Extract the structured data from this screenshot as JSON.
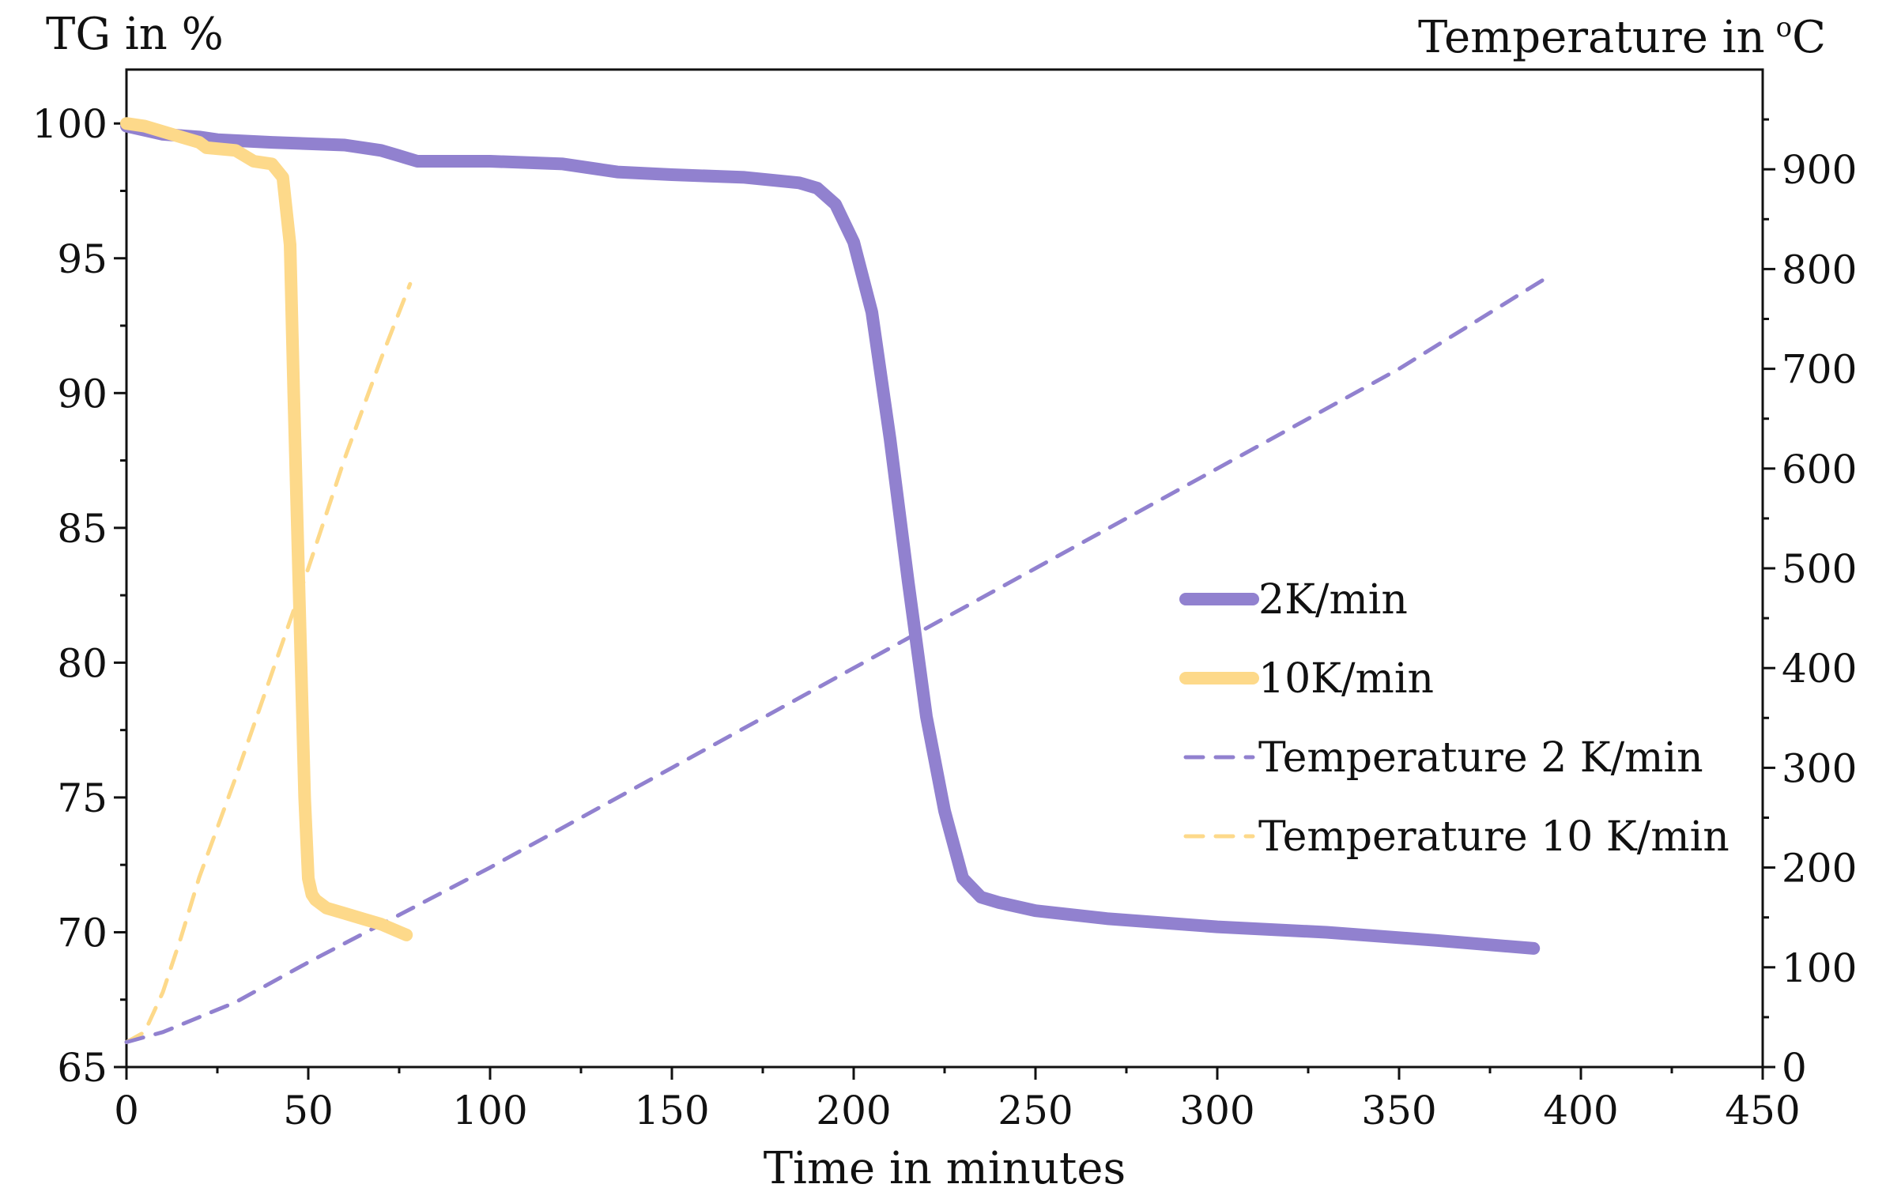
{
  "chart_data": {
    "type": "line",
    "title": "",
    "xlabel": "Time in minutes",
    "ylabel_left": "TG in %",
    "ylabel_right": "Temperature in °C",
    "right_label_text": "Temperature in",
    "right_label_unit_sup": "o",
    "right_label_unit": "C",
    "xlim": [
      0,
      450
    ],
    "ylim_left": [
      65,
      102
    ],
    "ylim_right": [
      0,
      1000
    ],
    "x_ticks": [
      0,
      50,
      100,
      150,
      200,
      250,
      300,
      350,
      400,
      450
    ],
    "y_left_ticks": [
      65,
      70,
      75,
      80,
      85,
      90,
      95,
      100
    ],
    "y_right_ticks": [
      0,
      100,
      200,
      300,
      400,
      500,
      600,
      700,
      800,
      900
    ],
    "legend_position": "center-right",
    "colors": {
      "purple": "#9181cf",
      "yellow": "#fdd98a",
      "axis": "#111111"
    },
    "series": [
      {
        "name": "2K/min",
        "axis": "left",
        "style": "solid",
        "color": "#9181cf",
        "x": [
          0,
          10,
          20,
          25,
          40,
          60,
          70,
          75,
          80,
          100,
          120,
          130,
          135,
          150,
          170,
          185,
          190,
          195,
          200,
          205,
          210,
          215,
          220,
          225,
          230,
          235,
          240,
          250,
          270,
          300,
          330,
          360,
          387
        ],
        "y": [
          99.9,
          99.6,
          99.5,
          99.4,
          99.3,
          99.2,
          99.0,
          98.8,
          98.6,
          98.6,
          98.5,
          98.3,
          98.2,
          98.1,
          98.0,
          97.8,
          97.6,
          97.0,
          95.6,
          93.0,
          88.3,
          83.0,
          78.0,
          74.5,
          72.0,
          71.3,
          71.1,
          70.8,
          70.5,
          70.2,
          70.0,
          69.7,
          69.4
        ]
      },
      {
        "name": "10K/min",
        "axis": "left",
        "style": "solid",
        "color": "#fdd98a",
        "x": [
          0,
          5,
          10,
          15,
          20,
          22,
          30,
          35,
          40,
          43,
          45,
          46,
          47,
          48,
          49,
          50,
          51,
          52,
          55,
          60,
          65,
          70,
          77
        ],
        "y": [
          100.0,
          99.9,
          99.7,
          99.5,
          99.3,
          99.1,
          99.0,
          98.6,
          98.5,
          98.0,
          95.5,
          90.0,
          85.0,
          80.0,
          75.0,
          72.0,
          71.4,
          71.2,
          70.9,
          70.7,
          70.5,
          70.3,
          69.9
        ]
      },
      {
        "name": "Temperature 2 K/min",
        "axis": "right",
        "style": "dashed",
        "color": "#9181cf",
        "x": [
          0,
          10,
          20,
          30,
          50,
          100,
          150,
          200,
          250,
          300,
          350,
          390
        ],
        "y": [
          25,
          35,
          50,
          65,
          105,
          200,
          300,
          400,
          500,
          600,
          700,
          790
        ]
      },
      {
        "name": "Temperature 10 K/min",
        "axis": "right",
        "style": "dashed",
        "color": "#fdd98a",
        "x": [
          0,
          5,
          10,
          15,
          20,
          30,
          40,
          50,
          60,
          70,
          78
        ],
        "y": [
          25,
          35,
          75,
          130,
          190,
          290,
          395,
          500,
          610,
          710,
          785
        ]
      }
    ]
  }
}
